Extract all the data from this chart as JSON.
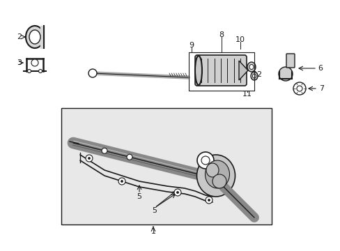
{
  "background_color": "#ffffff",
  "fig_width": 4.89,
  "fig_height": 3.6,
  "dpi": 100,
  "box_bg": "#e8e8e8",
  "line_color": "#1a1a1a",
  "text_color": "#1a1a1a"
}
